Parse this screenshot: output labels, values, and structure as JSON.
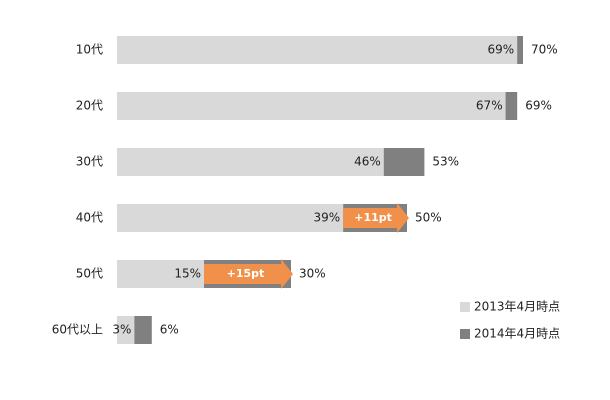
{
  "chart_data": {
    "type": "overlap-bar",
    "categories": [
      "10代",
      "20代",
      "30代",
      "40代",
      "50代",
      "60代以上"
    ],
    "series": [
      {
        "name": "2014年4月時点",
        "color": "#808080",
        "values": [
          70,
          69,
          53,
          50,
          30,
          6
        ],
        "value_labels": [
          "70%",
          "69%",
          "53%",
          "50%",
          "30%",
          "6%"
        ]
      },
      {
        "name": "2013年4月時点",
        "color": "#d9d9d9",
        "values": [
          69,
          67,
          46,
          39,
          15,
          3
        ],
        "value_labels": [
          "69%",
          "67%",
          "46%",
          "39%",
          "15%",
          "3%"
        ]
      }
    ],
    "annotations": [
      "+11pt",
      "+15pt"
    ],
    "annotation_color": "#f0904a",
    "xlim": [
      0,
      100
    ]
  }
}
